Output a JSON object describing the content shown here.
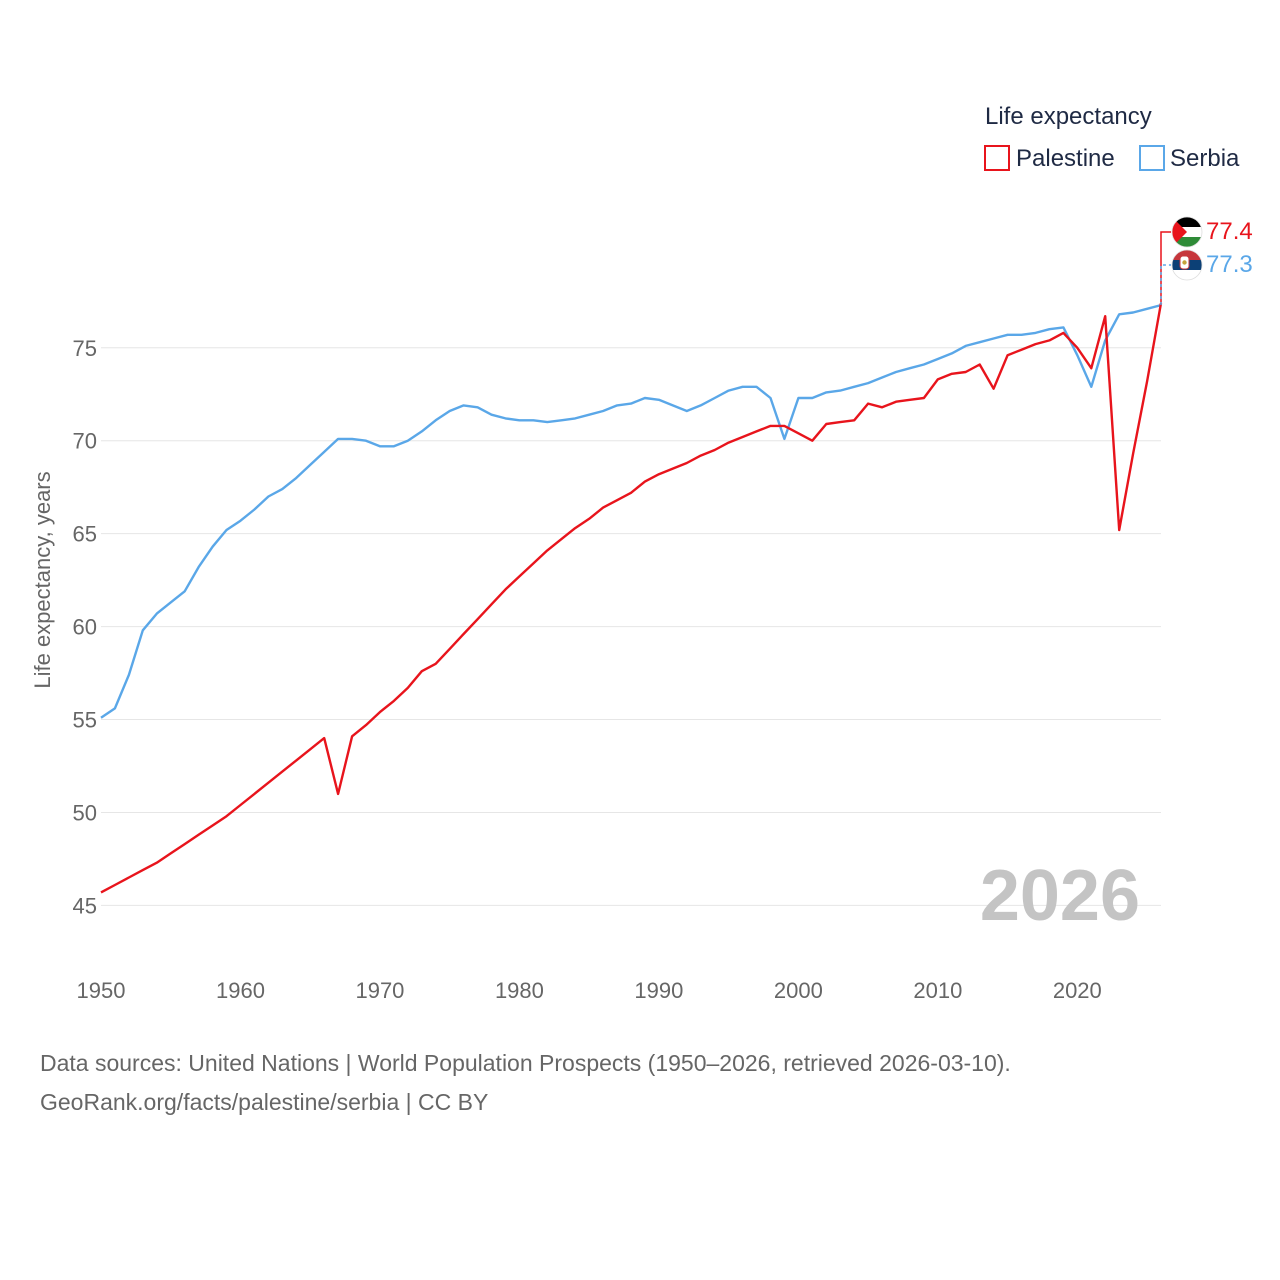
{
  "chart_data": {
    "type": "line",
    "title": "",
    "ylabel": "Life expectancy, years",
    "xlabel": "",
    "xlim": [
      1950,
      2026
    ],
    "ylim": [
      43.3,
      80.8
    ],
    "yticks": [
      45,
      50,
      55,
      60,
      65,
      70,
      75
    ],
    "xticks": [
      1950,
      1960,
      1970,
      1980,
      1990,
      2000,
      2010,
      2020
    ],
    "grid": true,
    "legend": {
      "title": "Life expectancy",
      "position": "top-right"
    },
    "year_label": "2026",
    "x": [
      1950,
      1951,
      1952,
      1953,
      1954,
      1955,
      1956,
      1957,
      1958,
      1959,
      1960,
      1961,
      1962,
      1963,
      1964,
      1965,
      1966,
      1967,
      1968,
      1969,
      1970,
      1971,
      1972,
      1973,
      1974,
      1975,
      1976,
      1977,
      1978,
      1979,
      1980,
      1981,
      1982,
      1983,
      1984,
      1985,
      1986,
      1987,
      1988,
      1989,
      1990,
      1991,
      1992,
      1993,
      1994,
      1995,
      1996,
      1997,
      1998,
      1999,
      2000,
      2001,
      2002,
      2003,
      2004,
      2005,
      2006,
      2007,
      2008,
      2009,
      2010,
      2011,
      2012,
      2013,
      2014,
      2015,
      2016,
      2017,
      2018,
      2019,
      2020,
      2021,
      2022,
      2023,
      2024,
      2025,
      2026
    ],
    "series": [
      {
        "name": "Palestine",
        "color": "#e8141c",
        "end_value": "77.4",
        "values": [
          45.7,
          46.1,
          46.5,
          46.9,
          47.3,
          47.8,
          48.3,
          48.8,
          49.3,
          49.8,
          50.4,
          51.0,
          51.6,
          52.2,
          52.8,
          53.4,
          54.0,
          51.0,
          54.1,
          54.7,
          55.4,
          56.0,
          56.7,
          57.6,
          58.0,
          58.8,
          59.6,
          60.4,
          61.2,
          62.0,
          62.7,
          63.4,
          64.1,
          64.7,
          65.3,
          65.8,
          66.4,
          66.8,
          67.2,
          67.8,
          68.2,
          68.5,
          68.8,
          69.2,
          69.5,
          69.9,
          70.2,
          70.5,
          70.8,
          70.8,
          70.4,
          70.0,
          70.9,
          71.0,
          71.1,
          72.0,
          71.8,
          72.1,
          72.2,
          72.3,
          73.3,
          73.6,
          73.7,
          74.1,
          72.8,
          74.6,
          74.9,
          75.2,
          75.4,
          75.8,
          75.0,
          73.9,
          76.7,
          65.2,
          69.3,
          73.2,
          77.4
        ]
      },
      {
        "name": "Serbia",
        "color": "#5aa7e8",
        "end_value": "77.3",
        "values": [
          55.1,
          55.6,
          57.4,
          59.8,
          60.7,
          61.3,
          61.9,
          63.2,
          64.3,
          65.2,
          65.7,
          66.3,
          67.0,
          67.4,
          68.0,
          68.7,
          69.4,
          70.1,
          70.1,
          70.0,
          69.7,
          69.7,
          70.0,
          70.5,
          71.1,
          71.6,
          71.9,
          71.8,
          71.4,
          71.2,
          71.1,
          71.1,
          71.0,
          71.1,
          71.2,
          71.4,
          71.6,
          71.9,
          72.0,
          72.3,
          72.2,
          71.9,
          71.6,
          71.9,
          72.3,
          72.7,
          72.9,
          72.9,
          72.3,
          70.1,
          72.3,
          72.3,
          72.6,
          72.7,
          72.9,
          73.1,
          73.4,
          73.7,
          73.9,
          74.1,
          74.4,
          74.7,
          75.1,
          75.3,
          75.5,
          75.7,
          75.7,
          75.8,
          76.0,
          76.1,
          74.6,
          72.9,
          75.4,
          76.8,
          76.9,
          77.1,
          77.3
        ]
      }
    ]
  },
  "source": {
    "line1": "Data sources: United Nations | World Population Prospects (1950–2026, retrieved 2026-03-10).",
    "line2": "GeoRank.org/facts/palestine/serbia | CC BY"
  },
  "icons": {
    "palestine_flag": "palestine-flag-icon",
    "serbia_flag": "serbia-flag-icon"
  }
}
